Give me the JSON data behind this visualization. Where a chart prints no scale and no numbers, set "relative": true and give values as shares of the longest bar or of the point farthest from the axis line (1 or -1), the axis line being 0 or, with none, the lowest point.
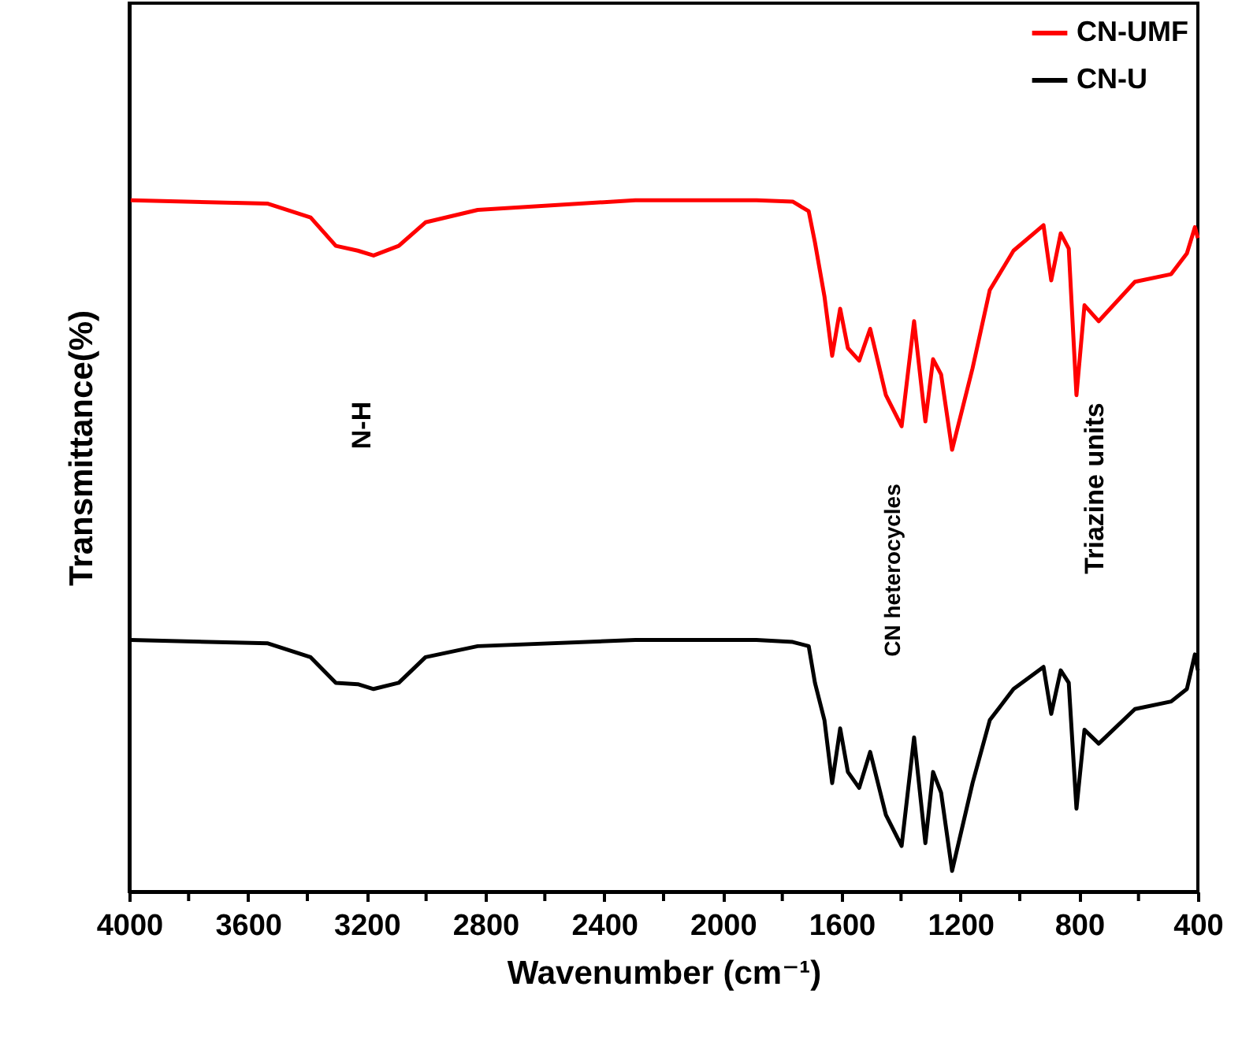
{
  "chart_data": {
    "type": "line",
    "relative": true,
    "xlabel": "Wavenumber (cm⁻¹)",
    "ylabel": "Transmittance(%)",
    "x": [
      3995,
      3533,
      3389,
      3304,
      3230,
      3177,
      3092,
      3002,
      2826,
      2295,
      1887,
      1765,
      1711,
      1690,
      1658,
      1632,
      1605,
      1579,
      1541,
      1504,
      1451,
      1398,
      1356,
      1318,
      1292,
      1265,
      1228,
      1159,
      1101,
      1021,
      920,
      894,
      862,
      835,
      809,
      782,
      734,
      612,
      490,
      437,
      410,
      400
    ],
    "xlim": [
      4000,
      400
    ],
    "xticks": [
      4000,
      {
        "value": 3800,
        "label": null
      },
      3600,
      {
        "value": 3400,
        "label": null
      },
      3200,
      {
        "value": 3000,
        "label": null
      },
      2800,
      {
        "value": 2600,
        "label": null
      },
      2400,
      {
        "value": 2200,
        "label": null
      },
      2000,
      {
        "value": 1800,
        "label": null
      },
      1600,
      {
        "value": 1400,
        "label": null
      },
      1200,
      {
        "value": 1000,
        "label": null
      },
      800,
      {
        "value": 600,
        "label": null
      },
      400
    ],
    "series": [
      {
        "name": "CN-UMF",
        "color": "#ff0000",
        "values": [
          1.0,
          0.995,
          0.975,
          0.934,
          0.927,
          0.92,
          0.934,
          0.968,
          0.986,
          1.0,
          1.0,
          0.998,
          0.984,
          0.939,
          0.861,
          0.775,
          0.843,
          0.786,
          0.768,
          0.814,
          0.718,
          0.673,
          0.825,
          0.68,
          0.77,
          0.748,
          0.639,
          0.757,
          0.87,
          0.927,
          0.964,
          0.884,
          0.952,
          0.93,
          0.718,
          0.848,
          0.825,
          0.882,
          0.893,
          0.923,
          0.961,
          0.945
        ]
      },
      {
        "name": "CN-U",
        "color": "#000000",
        "values": [
          0.364,
          0.359,
          0.339,
          0.302,
          0.3,
          0.293,
          0.302,
          0.339,
          0.355,
          0.364,
          0.364,
          0.361,
          0.355,
          0.302,
          0.248,
          0.157,
          0.236,
          0.173,
          0.15,
          0.202,
          0.111,
          0.066,
          0.223,
          0.07,
          0.173,
          0.143,
          0.03,
          0.157,
          0.248,
          0.293,
          0.325,
          0.257,
          0.32,
          0.302,
          0.12,
          0.234,
          0.214,
          0.264,
          0.275,
          0.293,
          0.343,
          0.32
        ]
      }
    ],
    "annotations": [
      "N-H",
      "CN heterocycles",
      "Triazine units"
    ],
    "legend": "top right",
    "grid": false,
    "line_style": "solid"
  }
}
